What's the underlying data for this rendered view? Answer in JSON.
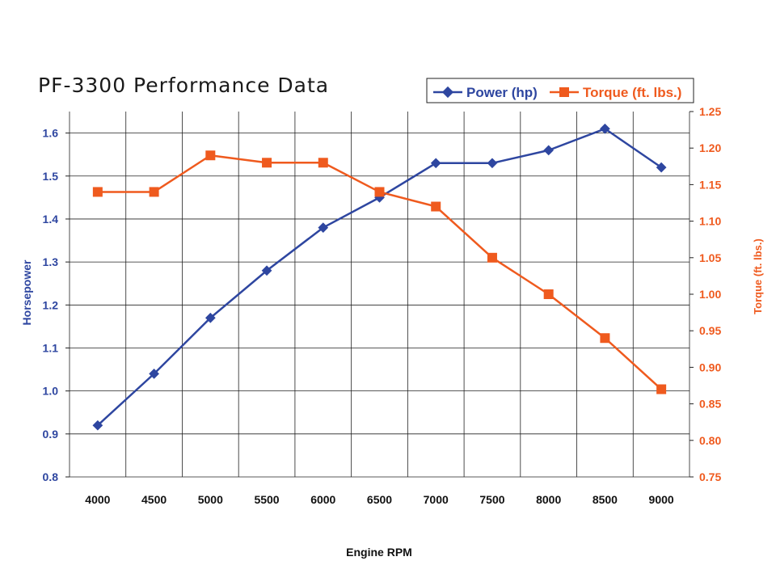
{
  "colors": {
    "power": "#2e46a0",
    "torque": "#ef5a1e",
    "grid": "#222222",
    "text": "#111111"
  },
  "chart_data": {
    "type": "line",
    "title": "PF-3300 Performance Data",
    "xlabel": "Engine RPM",
    "ylabel_left": "Horsepower",
    "ylabel_right": "Torque (ft. lbs.)",
    "categories": [
      "4000",
      "4500",
      "5000",
      "5500",
      "6000",
      "6500",
      "7000",
      "7500",
      "8000",
      "8500",
      "9000"
    ],
    "ylim_left": [
      0.8,
      1.65
    ],
    "ylim_right": [
      0.75,
      1.25
    ],
    "yticks_left": [
      "0.8",
      "0.9",
      "1.0",
      "1.1",
      "1.2",
      "1.3",
      "1.4",
      "1.5",
      "1.6"
    ],
    "yticks_right": [
      "0.75",
      "0.80",
      "0.85",
      "0.90",
      "0.95",
      "1.00",
      "1.05",
      "1.10",
      "1.15",
      "1.20",
      "1.25"
    ],
    "legend_position": "top-right",
    "series": [
      {
        "name": "Power (hp)",
        "axis": "left",
        "marker": "diamond",
        "color": "#2e46a0",
        "values": [
          0.92,
          1.04,
          1.17,
          1.28,
          1.38,
          1.45,
          1.53,
          1.53,
          1.56,
          1.61,
          1.52
        ]
      },
      {
        "name": "Torque (ft. lbs.)",
        "axis": "right",
        "marker": "square",
        "color": "#ef5a1e",
        "values": [
          1.14,
          1.14,
          1.19,
          1.18,
          1.18,
          1.14,
          1.12,
          1.05,
          1.0,
          0.94,
          0.87
        ]
      }
    ]
  }
}
